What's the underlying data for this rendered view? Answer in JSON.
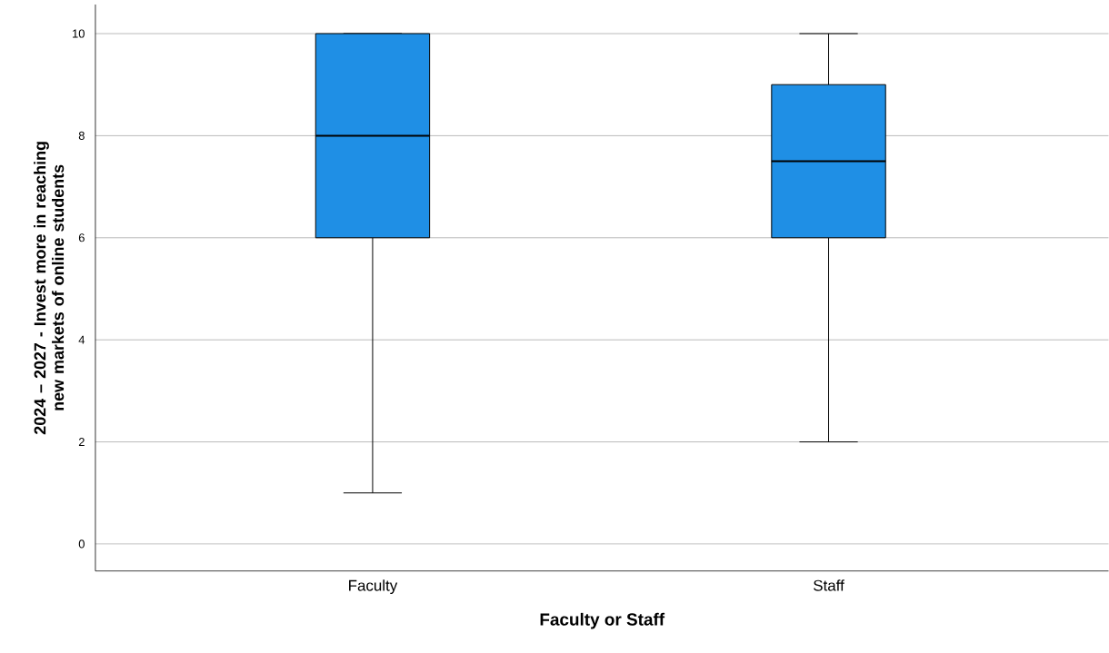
{
  "chart_data": {
    "type": "box",
    "xlabel": "Faculty or Staff",
    "ylabel": "2024 – 2027 - Invest more in reaching new markets of online students",
    "categories": [
      "Faculty",
      "Staff"
    ],
    "boxes": [
      {
        "low": 1,
        "q1": 6,
        "median": 8,
        "q3": 10,
        "high": 10
      },
      {
        "low": 2,
        "q1": 6,
        "median": 7.5,
        "q3": 9,
        "high": 10
      }
    ],
    "color": "#1f8fe5",
    "ylim": [
      -0.53,
      10.57
    ],
    "yticks": [
      0,
      2,
      4,
      6,
      8,
      10
    ],
    "grid": "y"
  }
}
